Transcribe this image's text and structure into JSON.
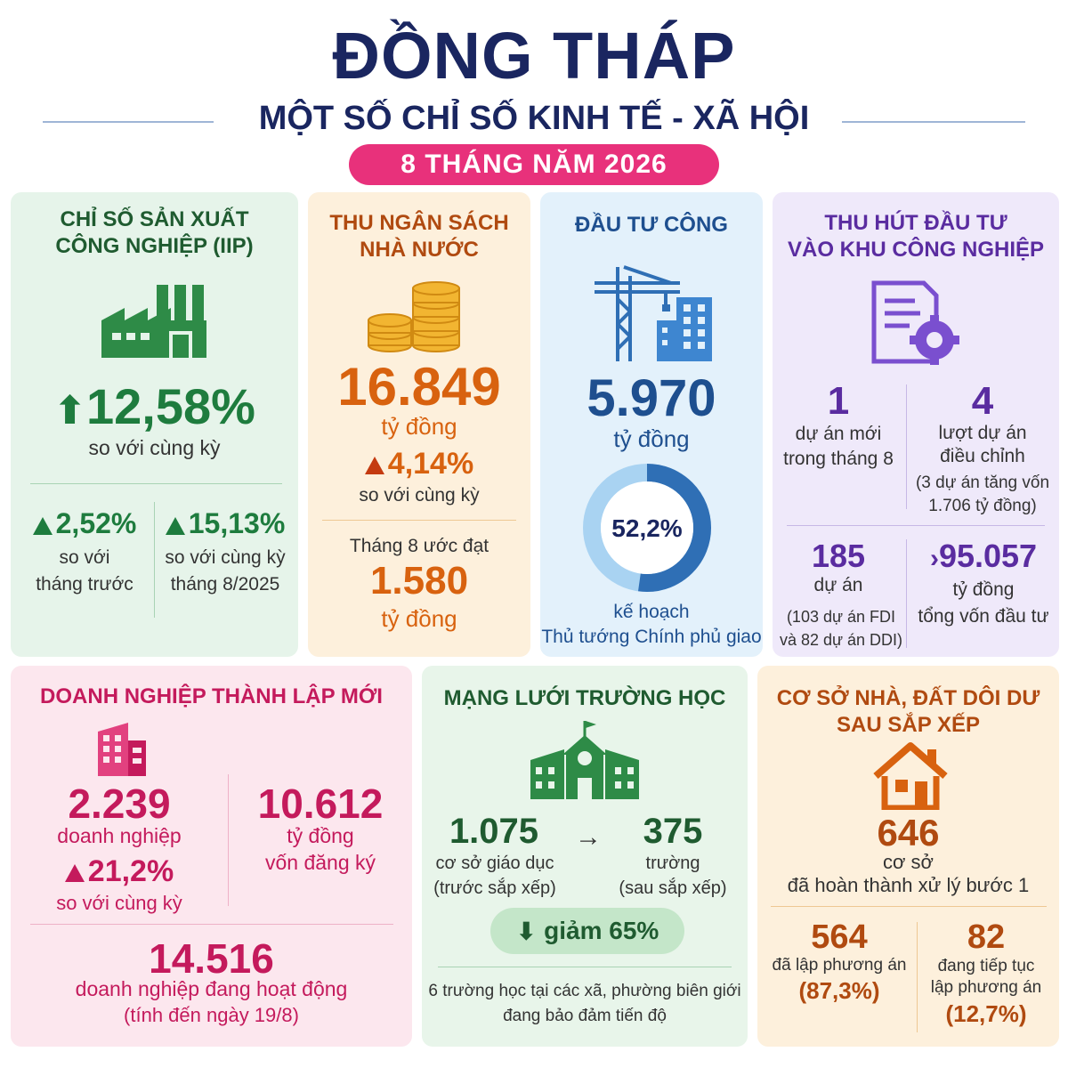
{
  "header": {
    "title": "ĐỒNG THÁP",
    "subtitle": "MỘT SỐ CHỈ SỐ KINH TẾ - XÃ HỘI",
    "period": "8 THÁNG NĂM 2026"
  },
  "iip": {
    "title_line1": "CHỈ SỐ SẢN XUẤT",
    "title_line2": "CÔNG NGHIỆP (IIP)",
    "main_value": "12,58%",
    "main_label": "so với cùng kỳ",
    "left_value": "2,52%",
    "left_label1": "so với",
    "left_label2": "tháng trước",
    "right_value": "15,13%",
    "right_label1": "so với cùng kỳ",
    "right_label2": "tháng 8/2025"
  },
  "ngan_sach": {
    "title_line1": "THU NGÂN SÁCH",
    "title_line2": "NHÀ NƯỚC",
    "value": "16.849",
    "unit": "tỷ đồng",
    "growth": "4,14%",
    "growth_label": "so với cùng kỳ",
    "month_label": "Tháng 8 ước đạt",
    "month_value": "1.580",
    "month_unit": "tỷ đồng"
  },
  "dau_tu_cong": {
    "title": "ĐẦU TƯ CÔNG",
    "value": "5.970",
    "unit": "tỷ đồng",
    "percent_label": "52,2%",
    "percent": 52.2,
    "note1": "kế hoạch",
    "note2": "Thủ tướng Chính phủ giao"
  },
  "kcn": {
    "title_line1": "THU HÚT ĐẦU TƯ",
    "title_line2": "VÀO KHU CÔNG NGHIỆP",
    "a_value": "1",
    "a_label1": "dự án mới",
    "a_label2": "trong tháng 8",
    "b_value": "4",
    "b_label1": "lượt dự án",
    "b_label2": "điều chỉnh",
    "b_note1": "(3 dự án tăng vốn",
    "b_note2": "1.706 tỷ đồng)",
    "c_value": "185",
    "c_label": "dự án",
    "c_note1": "(103 dự án FDI",
    "c_note2": "và 82 dự án DDI)",
    "d_value": "95.057",
    "d_label1": "tỷ đồng",
    "d_label2": "tổng vốn đầu tư"
  },
  "doanh_nghiep": {
    "title": "DOANH NGHIỆP THÀNH LẬP MỚI",
    "count": "2.239",
    "count_label": "doanh nghiệp",
    "growth": "21,2%",
    "growth_label": "so với cùng kỳ",
    "capital": "10.612",
    "capital_unit": "tỷ đồng",
    "capital_label": "vốn đăng ký",
    "active": "14.516",
    "active_label": "doanh nghiệp đang hoạt động",
    "active_note": "(tính đến ngày 19/8)"
  },
  "truong_hoc": {
    "title": "MẠNG LƯỚI TRƯỜNG HỌC",
    "before_value": "1.075",
    "before_label1": "cơ sở giáo dục",
    "before_label2": "(trước sắp xếp)",
    "after_value": "375",
    "after_label1": "trường",
    "after_label2": "(sau sắp xếp)",
    "arrow": "→",
    "reduce": "giảm 65%",
    "note1": "6 trường học tại các xã, phường biên giới",
    "note2": "đang bảo đảm tiến độ"
  },
  "nha_dat": {
    "title_line1": "CƠ SỞ NHÀ, ĐẤT DÔI DƯ",
    "title_line2": "SAU SẮP XẾP",
    "value": "646",
    "unit": "cơ sở",
    "label": "đã hoàn thành xử lý bước 1",
    "left_value": "564",
    "left_label": "đã lập phương án",
    "left_pct": "(87,3%)",
    "right_value": "82",
    "right_label1": "đang tiếp tục",
    "right_label2": "lập phương án",
    "right_pct": "(12,7%)"
  },
  "colors": {
    "navy": "#1a2660",
    "pink": "#e8317b",
    "green": "#1e7c3e",
    "orange": "#d8620f",
    "blue": "#1e4f8f",
    "purple": "#5a2ca0",
    "magenta": "#c41a5c"
  }
}
